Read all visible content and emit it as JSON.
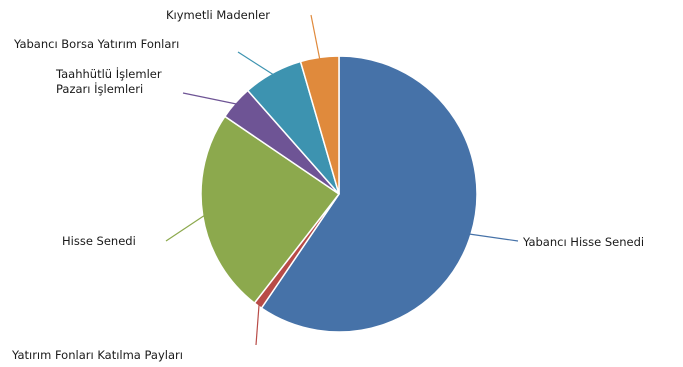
{
  "chart_data": {
    "type": "pie",
    "start_angle_deg": 0,
    "direction": "clockwise",
    "slices": [
      {
        "label": "Yabancı Hisse Senedi",
        "value": 59.5,
        "color": "#4672a8"
      },
      {
        "label": "Yatırım Fonları Katılma Payları",
        "value": 1.0,
        "color": "#b84b47"
      },
      {
        "label": "Hisse Senedi",
        "value": 24.0,
        "color": "#8ca94d"
      },
      {
        "label": "Taahhütlü İşlemler Pazarı İşlemleri",
        "value": 4.0,
        "color": "#6e5495",
        "label_lines": [
          "Taahhütlü İşlemler",
          "Pazarı İşlemleri"
        ]
      },
      {
        "label": "Yabancı Borsa Yatırım Fonları",
        "value": 7.0,
        "color": "#3d93b0"
      },
      {
        "label": "Kıymetli Madenler",
        "value": 4.5,
        "color": "#e08a3c"
      }
    ]
  }
}
